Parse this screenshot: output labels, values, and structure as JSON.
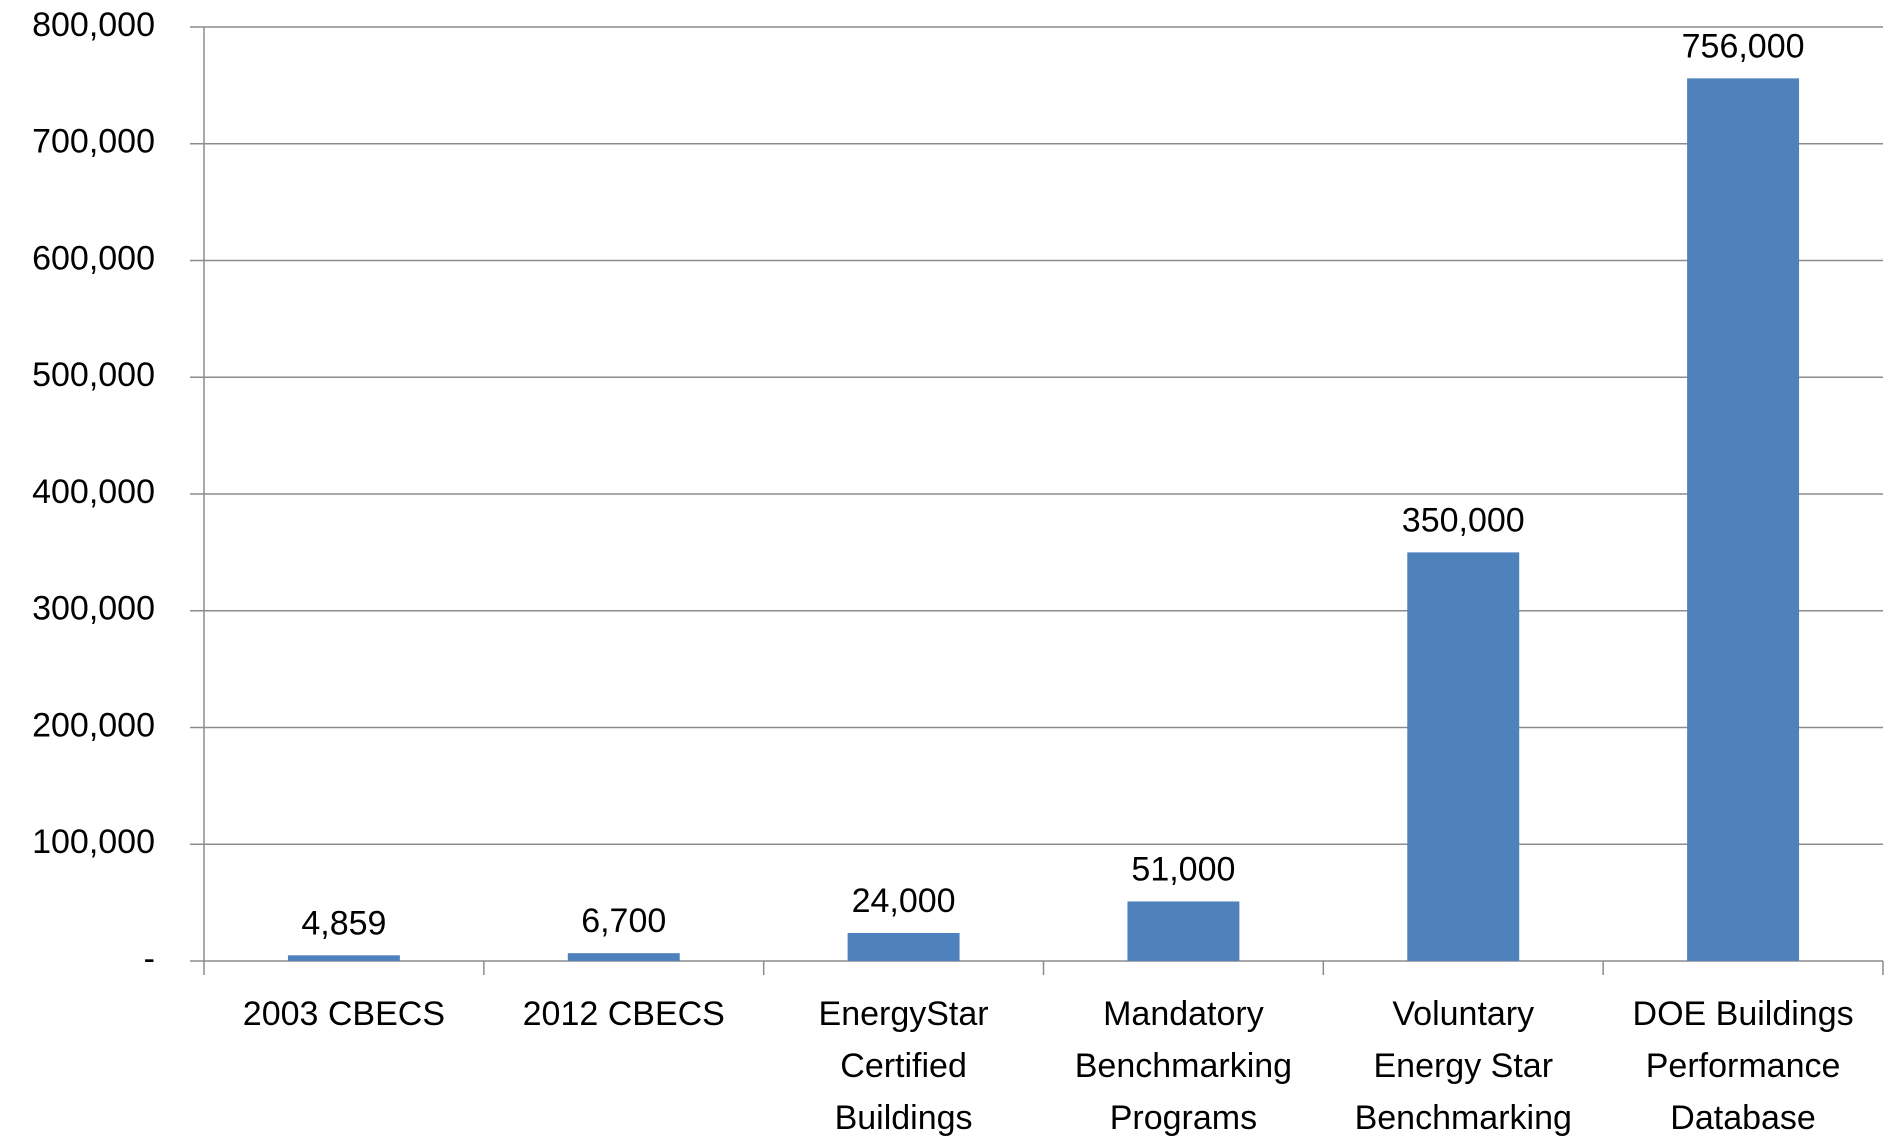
{
  "chart_data": {
    "type": "bar",
    "categories": [
      [
        "2003 CBECS"
      ],
      [
        "2012 CBECS"
      ],
      [
        "EnergyStar",
        "Certified",
        "Buildings"
      ],
      [
        "Mandatory",
        "Benchmarking",
        "Programs"
      ],
      [
        "Voluntary",
        "Energy Star",
        "Benchmarking"
      ],
      [
        "DOE Buildings",
        "Performance",
        "Database"
      ]
    ],
    "values": [
      4859,
      6700,
      24000,
      51000,
      350000,
      756000
    ],
    "value_labels": [
      "4,859",
      "6,700",
      "24,000",
      "51,000",
      "350,000",
      "756,000"
    ],
    "color": "#4f81bd",
    "ylim": [
      0,
      800000
    ],
    "yticks": [
      {
        "value": 0,
        "label": "-"
      },
      {
        "value": 100000,
        "label": "100,000"
      },
      {
        "value": 200000,
        "label": "200,000"
      },
      {
        "value": 300000,
        "label": "300,000"
      },
      {
        "value": 400000,
        "label": "400,000"
      },
      {
        "value": 500000,
        "label": "500,000"
      },
      {
        "value": 600000,
        "label": "600,000"
      },
      {
        "value": 700000,
        "label": "700,000"
      },
      {
        "value": 800000,
        "label": "800,000"
      }
    ],
    "grid": true
  }
}
